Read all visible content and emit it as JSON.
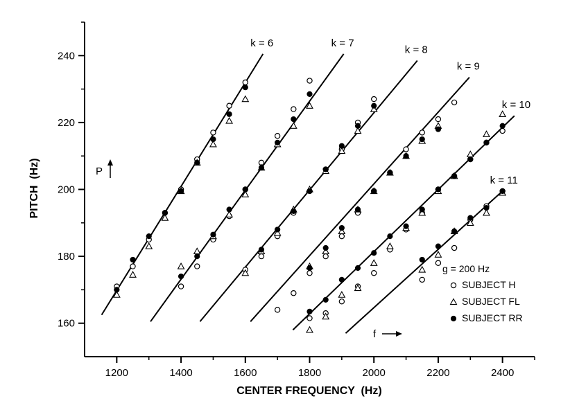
{
  "chart_data": {
    "type": "scatter",
    "xlabel": "CENTER FREQUENCY  (Hz)",
    "ylabel": "PITCH  (Hz)",
    "xlim": [
      1100,
      2500
    ],
    "ylim": [
      150,
      250
    ],
    "x_ticks": [
      1200,
      1400,
      1600,
      1800,
      2000,
      2200,
      2400
    ],
    "x_minor_ticks": [
      1300,
      1500,
      1700,
      1900,
      2100,
      2300,
      2500
    ],
    "y_ticks": [
      160,
      180,
      200,
      220,
      240
    ],
    "y_minor_ticks": [
      170,
      190,
      210,
      230
    ],
    "annotations": {
      "p_label": "P",
      "f_label": "f",
      "g_text": "g = 200 Hz"
    },
    "lines": [
      {
        "label": "k = 6",
        "x": [
          1153,
          1655
        ],
        "y": [
          162.5,
          240.5
        ]
      },
      {
        "label": "k = 7",
        "x": [
          1305,
          1906
        ],
        "y": [
          160.5,
          240.5
        ]
      },
      {
        "label": "k = 8",
        "x": [
          1459,
          2135
        ],
        "y": [
          160.5,
          238.5
        ]
      },
      {
        "label": "k = 9",
        "x": [
          1616,
          2297
        ],
        "y": [
          160.5,
          233.5
        ]
      },
      {
        "label": "k = 10",
        "x": [
          1748,
          2437
        ],
        "y": [
          158,
          222
        ]
      },
      {
        "label": "k = 11",
        "x": [
          1912,
          2400
        ],
        "y": [
          157,
          199.5
        ]
      }
    ],
    "series": [
      {
        "name": "SUBJECT  H",
        "marker": "open-circle",
        "points": [
          [
            1200,
            171
          ],
          [
            1250,
            177
          ],
          [
            1300,
            185
          ],
          [
            1350,
            193
          ],
          [
            1400,
            200
          ],
          [
            1450,
            209
          ],
          [
            1500,
            217
          ],
          [
            1550,
            225
          ],
          [
            1600,
            232
          ],
          [
            1400,
            171
          ],
          [
            1450,
            177
          ],
          [
            1500,
            185
          ],
          [
            1550,
            192
          ],
          [
            1600,
            200
          ],
          [
            1650,
            208
          ],
          [
            1700,
            216
          ],
          [
            1750,
            224
          ],
          [
            1800,
            232.5
          ],
          [
            1600,
            176
          ],
          [
            1650,
            180
          ],
          [
            1700,
            186
          ],
          [
            1750,
            193
          ],
          [
            1800,
            199.5
          ],
          [
            1850,
            206
          ],
          [
            1900,
            212
          ],
          [
            1950,
            220
          ],
          [
            2000,
            227
          ],
          [
            1700,
            164
          ],
          [
            1750,
            169
          ],
          [
            1800,
            175
          ],
          [
            1850,
            180
          ],
          [
            1900,
            186
          ],
          [
            1950,
            193
          ],
          [
            2000,
            199.5
          ],
          [
            2050,
            205
          ],
          [
            2100,
            212
          ],
          [
            2150,
            217
          ],
          [
            2200,
            221
          ],
          [
            2250,
            226
          ],
          [
            1800,
            161.5
          ],
          [
            1850,
            163
          ],
          [
            1900,
            166.5
          ],
          [
            1950,
            171
          ],
          [
            2000,
            175
          ],
          [
            2050,
            182
          ],
          [
            2100,
            188
          ],
          [
            2150,
            193
          ],
          [
            2200,
            200
          ],
          [
            2250,
            204
          ],
          [
            2300,
            209
          ],
          [
            2350,
            214
          ],
          [
            2400,
            217.5
          ],
          [
            2150,
            173
          ],
          [
            2200,
            178
          ],
          [
            2250,
            182.5
          ],
          [
            2300,
            191
          ],
          [
            2350,
            195
          ],
          [
            2400,
            199.5
          ]
        ]
      },
      {
        "name": "SUBJECT  FL",
        "marker": "open-triangle",
        "points": [
          [
            1200,
            168.5
          ],
          [
            1250,
            174.5
          ],
          [
            1300,
            183
          ],
          [
            1350,
            191.5
          ],
          [
            1400,
            199.5
          ],
          [
            1450,
            208
          ],
          [
            1500,
            213.5
          ],
          [
            1550,
            220.5
          ],
          [
            1600,
            227
          ],
          [
            1400,
            177
          ],
          [
            1450,
            181.5
          ],
          [
            1500,
            186
          ],
          [
            1550,
            192.5
          ],
          [
            1600,
            198.5
          ],
          [
            1650,
            206.5
          ],
          [
            1700,
            213.5
          ],
          [
            1750,
            219
          ],
          [
            1800,
            225
          ],
          [
            1600,
            175
          ],
          [
            1650,
            181.5
          ],
          [
            1700,
            187
          ],
          [
            1750,
            194
          ],
          [
            1800,
            200
          ],
          [
            1850,
            205.5
          ],
          [
            1900,
            211.5
          ],
          [
            1950,
            217.5
          ],
          [
            2000,
            224
          ],
          [
            1800,
            177
          ],
          [
            1850,
            181.5
          ],
          [
            1900,
            187.5
          ],
          [
            1950,
            194
          ],
          [
            2000,
            199.5
          ],
          [
            2050,
            205
          ],
          [
            2100,
            210
          ],
          [
            2150,
            214.5
          ],
          [
            2200,
            219
          ],
          [
            1800,
            158
          ],
          [
            1850,
            162
          ],
          [
            1900,
            168.5
          ],
          [
            1950,
            170.5
          ],
          [
            2000,
            178
          ],
          [
            2050,
            183
          ],
          [
            2100,
            188.5
          ],
          [
            2150,
            193
          ],
          [
            2200,
            199.5
          ],
          [
            2250,
            204
          ],
          [
            2300,
            210.5
          ],
          [
            2350,
            216.5
          ],
          [
            2400,
            222.5
          ],
          [
            2150,
            176
          ],
          [
            2200,
            180.5
          ],
          [
            2250,
            187.5
          ],
          [
            2300,
            190
          ],
          [
            2350,
            193
          ],
          [
            2400,
            199
          ]
        ]
      },
      {
        "name": "SUBJECT  RR",
        "marker": "filled-circle",
        "points": [
          [
            1200,
            170
          ],
          [
            1250,
            179
          ],
          [
            1300,
            186
          ],
          [
            1350,
            193
          ],
          [
            1400,
            199.5
          ],
          [
            1450,
            208
          ],
          [
            1500,
            215
          ],
          [
            1550,
            222.5
          ],
          [
            1600,
            230.5
          ],
          [
            1400,
            174
          ],
          [
            1450,
            180
          ],
          [
            1500,
            186.5
          ],
          [
            1550,
            194
          ],
          [
            1600,
            200
          ],
          [
            1650,
            206.5
          ],
          [
            1700,
            214
          ],
          [
            1750,
            221
          ],
          [
            1800,
            228.5
          ],
          [
            1650,
            182
          ],
          [
            1700,
            188
          ],
          [
            1750,
            193.5
          ],
          [
            1800,
            199.5
          ],
          [
            1850,
            206
          ],
          [
            1900,
            213
          ],
          [
            1950,
            219
          ],
          [
            2000,
            225
          ],
          [
            1800,
            176.5
          ],
          [
            1850,
            182.5
          ],
          [
            1900,
            188.5
          ],
          [
            1950,
            194
          ],
          [
            2000,
            199.5
          ],
          [
            2050,
            205
          ],
          [
            2100,
            210
          ],
          [
            2150,
            215
          ],
          [
            2200,
            218
          ],
          [
            1800,
            163.5
          ],
          [
            1850,
            167
          ],
          [
            1900,
            173
          ],
          [
            1950,
            176.5
          ],
          [
            2000,
            181
          ],
          [
            2050,
            186
          ],
          [
            2100,
            189
          ],
          [
            2150,
            194
          ],
          [
            2200,
            200
          ],
          [
            2250,
            204
          ],
          [
            2300,
            209
          ],
          [
            2350,
            214
          ],
          [
            2400,
            219
          ],
          [
            2150,
            179
          ],
          [
            2200,
            183
          ],
          [
            2250,
            187.5
          ],
          [
            2300,
            191.5
          ],
          [
            2350,
            194.5
          ],
          [
            2400,
            199.5
          ]
        ]
      }
    ]
  }
}
